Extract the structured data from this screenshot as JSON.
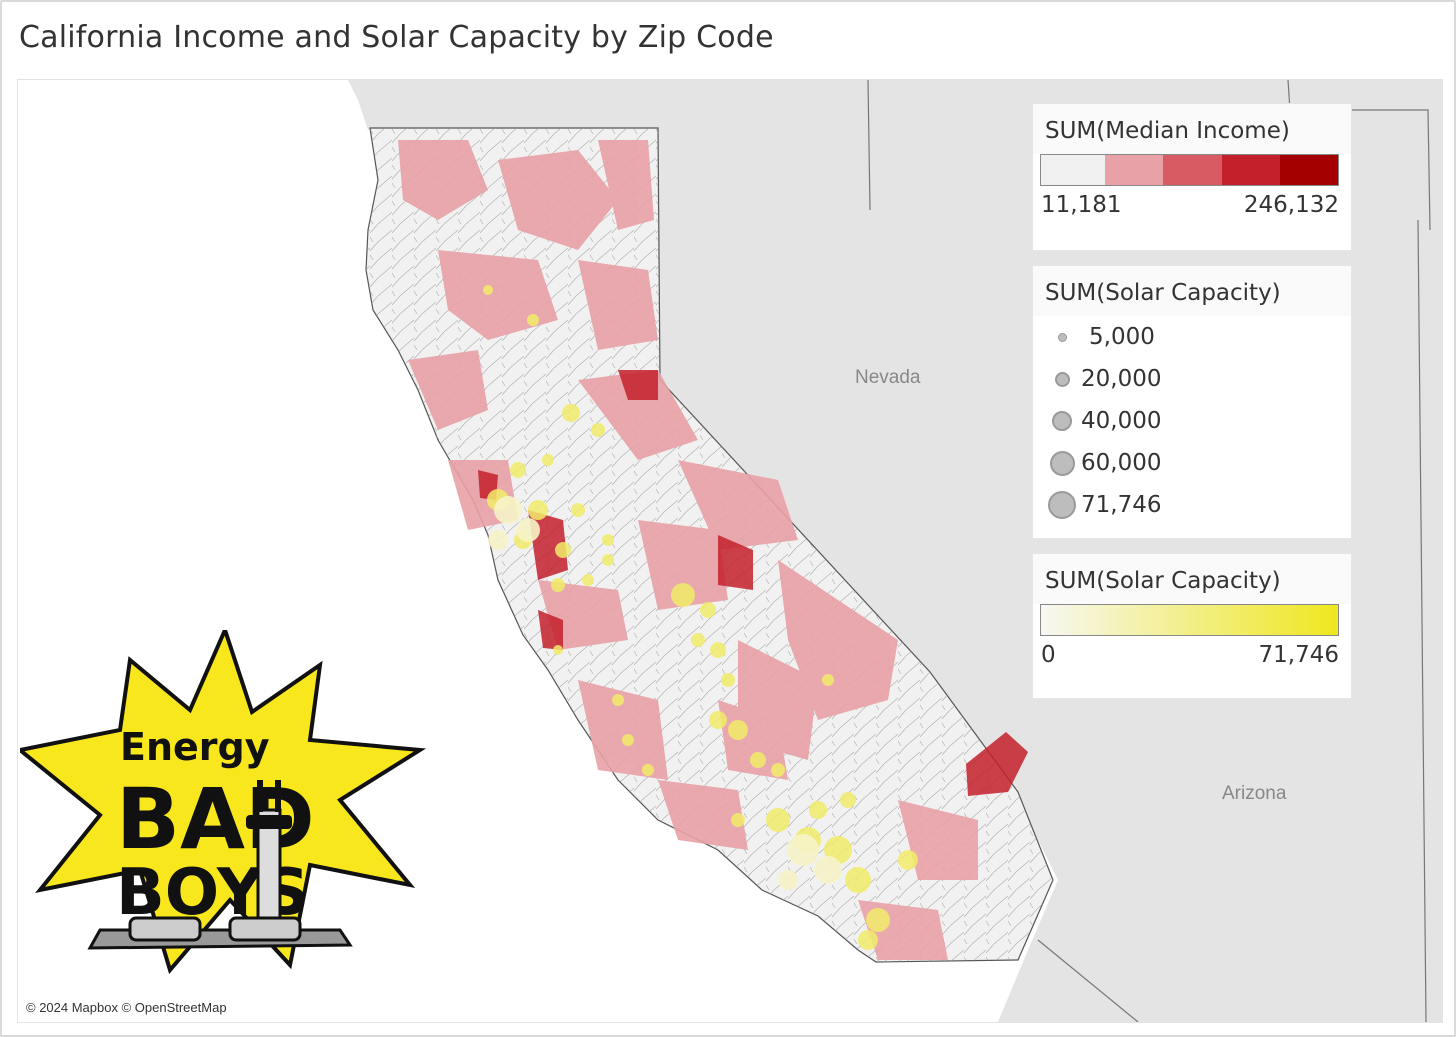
{
  "title": "California Income and Solar Capacity by Zip Code",
  "map": {
    "state_labels": {
      "nevada": "Nevada",
      "arizona": "Arizona"
    },
    "attribution": "© 2024 Mapbox © OpenStreetMap"
  },
  "legends": {
    "income": {
      "title": "SUM(Median Income)",
      "min": "11,181",
      "max": "246,132",
      "colors": [
        "#f0f0f0",
        "#e8a1a6",
        "#d85a62",
        "#c4202c",
        "#a50000"
      ]
    },
    "solar_size": {
      "title": "SUM(Solar Capacity)",
      "items": [
        "5,000",
        "20,000",
        "40,000",
        "60,000",
        "71,746"
      ]
    },
    "solar_color": {
      "title": "SUM(Solar Capacity)",
      "min": "0",
      "max": "71,746",
      "colors": [
        "#f7f7f2",
        "#efe71f"
      ]
    }
  },
  "logo": {
    "text_top": "Energy",
    "text_mid": "BAD",
    "text_bottom": "BOYS",
    "star_color": "#f8e71c"
  }
}
